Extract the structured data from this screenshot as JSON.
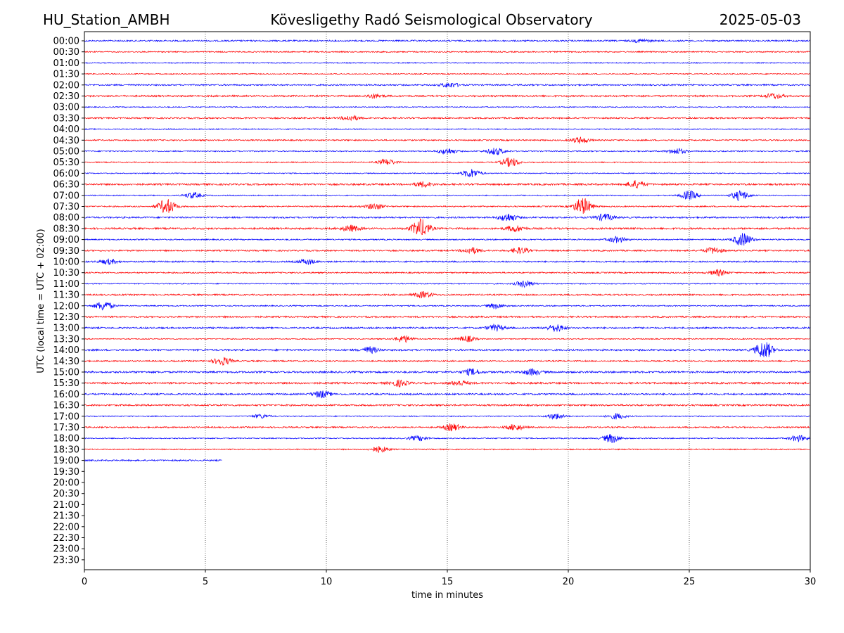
{
  "header": {
    "station": "HU_Station_AMBH",
    "observatory": "Kövesligethy Radó Seismological Observatory",
    "date": "2025-05-03"
  },
  "chart_data": {
    "type": "line",
    "title": "Kövesligethy Radó Seismological Observatory",
    "xlabel": "time in minutes",
    "ylabel": "UTC (local time = UTC + 02:00)",
    "xlim": [
      0,
      30
    ],
    "x_ticks": [
      0,
      5,
      10,
      15,
      20,
      25,
      30
    ],
    "y_ticks": [
      "00:00",
      "00:30",
      "01:00",
      "01:30",
      "02:00",
      "02:30",
      "03:00",
      "03:30",
      "04:00",
      "04:30",
      "05:00",
      "05:30",
      "06:00",
      "06:30",
      "07:00",
      "07:30",
      "08:00",
      "08:30",
      "09:00",
      "09:30",
      "10:00",
      "10:30",
      "11:00",
      "11:30",
      "12:00",
      "12:30",
      "13:00",
      "13:30",
      "14:00",
      "14:30",
      "15:00",
      "15:30",
      "16:00",
      "16:30",
      "17:00",
      "17:30",
      "18:00",
      "18:30",
      "19:00",
      "19:30",
      "20:00",
      "20:30",
      "21:00",
      "21:30",
      "22:00",
      "22:30",
      "23:00",
      "23:30"
    ],
    "grid": "vertical dotted lines at each x tick",
    "trace_colors": [
      "#0000ff",
      "#ff0000"
    ],
    "trace_color_rule": "alternating blue (full hour) / red (half hour)",
    "trace_end_minutes": [
      30,
      30,
      30,
      30,
      30,
      30,
      30,
      30,
      30,
      30,
      30,
      30,
      30,
      30,
      30,
      30,
      30,
      30,
      30,
      30,
      30,
      30,
      30,
      30,
      30,
      30,
      30,
      30,
      30,
      30,
      30,
      30,
      30,
      30,
      30,
      30,
      30,
      30,
      5.7,
      0,
      0,
      0,
      0,
      0,
      0,
      0,
      0,
      0
    ],
    "events": [
      {
        "row": 0,
        "minute": 23.0,
        "amp": 0.15
      },
      {
        "row": 4,
        "minute": 15.1,
        "amp": 0.25
      },
      {
        "row": 5,
        "minute": 12.0,
        "amp": 0.2
      },
      {
        "row": 5,
        "minute": 28.5,
        "amp": 0.25
      },
      {
        "row": 7,
        "minute": 11.0,
        "amp": 0.25
      },
      {
        "row": 9,
        "minute": 20.5,
        "amp": 0.3
      },
      {
        "row": 10,
        "minute": 17.0,
        "amp": 0.35
      },
      {
        "row": 10,
        "minute": 15.0,
        "amp": 0.3
      },
      {
        "row": 10,
        "minute": 24.5,
        "amp": 0.3
      },
      {
        "row": 11,
        "minute": 17.6,
        "amp": 0.45
      },
      {
        "row": 11,
        "minute": 12.5,
        "amp": 0.3
      },
      {
        "row": 12,
        "minute": 16.0,
        "amp": 0.45
      },
      {
        "row": 13,
        "minute": 22.8,
        "amp": 0.35
      },
      {
        "row": 13,
        "minute": 14.0,
        "amp": 0.25
      },
      {
        "row": 14,
        "minute": 4.5,
        "amp": 0.3
      },
      {
        "row": 14,
        "minute": 25.0,
        "amp": 0.45
      },
      {
        "row": 14,
        "minute": 27.1,
        "amp": 0.5
      },
      {
        "row": 15,
        "minute": 3.4,
        "amp": 0.75
      },
      {
        "row": 15,
        "minute": 20.6,
        "amp": 0.85
      },
      {
        "row": 15,
        "minute": 12.0,
        "amp": 0.3
      },
      {
        "row": 16,
        "minute": 17.5,
        "amp": 0.4
      },
      {
        "row": 16,
        "minute": 21.5,
        "amp": 0.35
      },
      {
        "row": 17,
        "minute": 13.9,
        "amp": 0.9
      },
      {
        "row": 17,
        "minute": 11.0,
        "amp": 0.3
      },
      {
        "row": 17,
        "minute": 17.8,
        "amp": 0.3
      },
      {
        "row": 18,
        "minute": 27.2,
        "amp": 0.65
      },
      {
        "row": 18,
        "minute": 22.0,
        "amp": 0.3
      },
      {
        "row": 19,
        "minute": 16.0,
        "amp": 0.3
      },
      {
        "row": 19,
        "minute": 18.0,
        "amp": 0.3
      },
      {
        "row": 19,
        "minute": 26.0,
        "amp": 0.3
      },
      {
        "row": 20,
        "minute": 9.2,
        "amp": 0.25
      },
      {
        "row": 20,
        "minute": 1.0,
        "amp": 0.25
      },
      {
        "row": 21,
        "minute": 26.2,
        "amp": 0.3
      },
      {
        "row": 22,
        "minute": 18.2,
        "amp": 0.35
      },
      {
        "row": 23,
        "minute": 14.0,
        "amp": 0.3
      },
      {
        "row": 24,
        "minute": 0.8,
        "amp": 0.45
      },
      {
        "row": 24,
        "minute": 17.0,
        "amp": 0.25
      },
      {
        "row": 26,
        "minute": 17.0,
        "amp": 0.3
      },
      {
        "row": 26,
        "minute": 19.5,
        "amp": 0.35
      },
      {
        "row": 27,
        "minute": 13.2,
        "amp": 0.35
      },
      {
        "row": 27,
        "minute": 15.8,
        "amp": 0.3
      },
      {
        "row": 28,
        "minute": 28.1,
        "amp": 0.85
      },
      {
        "row": 28,
        "minute": 11.8,
        "amp": 0.3
      },
      {
        "row": 29,
        "minute": 5.7,
        "amp": 0.4
      },
      {
        "row": 30,
        "minute": 16.0,
        "amp": 0.3
      },
      {
        "row": 30,
        "minute": 18.5,
        "amp": 0.3
      },
      {
        "row": 31,
        "minute": 13.0,
        "amp": 0.3
      },
      {
        "row": 31,
        "minute": 15.5,
        "amp": 0.25
      },
      {
        "row": 32,
        "minute": 9.8,
        "amp": 0.35
      },
      {
        "row": 34,
        "minute": 19.5,
        "amp": 0.3
      },
      {
        "row": 34,
        "minute": 22.0,
        "amp": 0.3
      },
      {
        "row": 34,
        "minute": 7.3,
        "amp": 0.2
      },
      {
        "row": 35,
        "minute": 15.2,
        "amp": 0.35
      },
      {
        "row": 35,
        "minute": 17.8,
        "amp": 0.3
      },
      {
        "row": 36,
        "minute": 21.8,
        "amp": 0.45
      },
      {
        "row": 36,
        "minute": 29.5,
        "amp": 0.3
      },
      {
        "row": 36,
        "minute": 13.8,
        "amp": 0.25
      },
      {
        "row": 37,
        "minute": 12.2,
        "amp": 0.3
      }
    ]
  }
}
